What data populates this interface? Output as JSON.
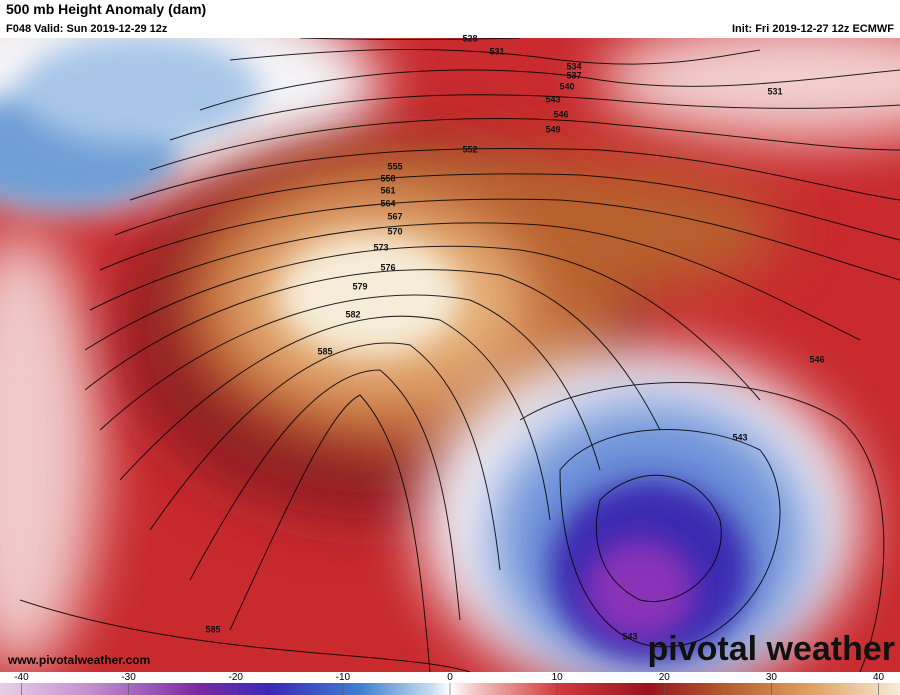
{
  "header": {
    "title": "500 mb Height Anomaly (dam)",
    "valid": "F048 Valid: Sun 2019-12-29 12z",
    "init": "Init: Fri 2019-12-27 12z ECMWF"
  },
  "contour_labels": [
    528,
    531,
    534,
    537,
    540,
    543,
    546,
    549,
    552,
    555,
    558,
    561,
    564,
    567,
    570,
    573,
    576,
    579,
    582,
    585,
    585,
    531,
    546,
    543,
    543
  ],
  "footer": {
    "website": "www.pivotalweather.com",
    "logo": "pivotal weather"
  },
  "colorbar": {
    "lim": [
      -42,
      42
    ],
    "ticks": [
      -40,
      -30,
      -20,
      -10,
      0,
      10,
      20,
      30,
      40
    ]
  }
}
